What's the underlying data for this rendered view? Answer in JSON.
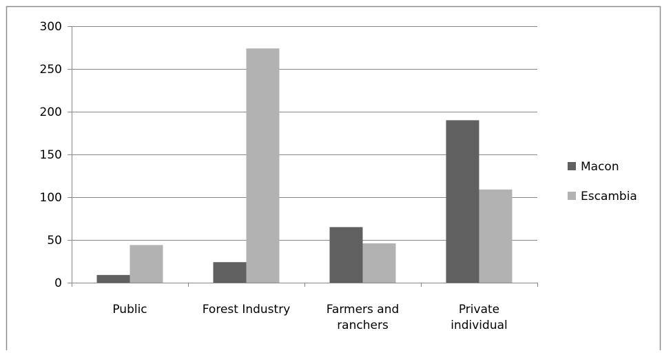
{
  "chart_data": {
    "type": "bar",
    "title": "",
    "xlabel": "",
    "ylabel": "",
    "categories": [
      [
        "Public"
      ],
      [
        "Forest Industry"
      ],
      [
        "Farmers and",
        "ranchers"
      ],
      [
        "Private",
        "individual"
      ]
    ],
    "series": [
      {
        "name": "Macon",
        "values": [
          9,
          24,
          65,
          190
        ],
        "color": "#606060"
      },
      {
        "name": "Escambia",
        "values": [
          44,
          274,
          46,
          109
        ],
        "color": "#b2b2b2"
      }
    ],
    "ylim": [
      0,
      300
    ],
    "yticks": [
      "0",
      "50",
      "100",
      "150",
      "200",
      "250",
      "300"
    ],
    "grid": true,
    "legend_position": "right"
  }
}
